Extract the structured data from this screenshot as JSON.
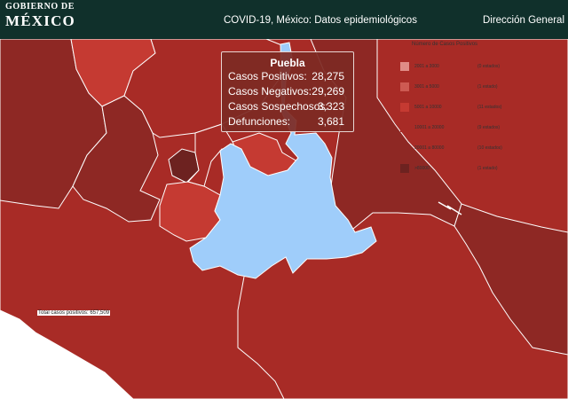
{
  "header": {
    "logo_line1": "GOBIERNO DE",
    "logo_line2": "MÉXICO",
    "title": "COVID-19, México: Datos epidemiológicos",
    "direction": "Dirección General"
  },
  "tooltip": {
    "state": "Puebla",
    "rows": [
      {
        "label": "Casos Positivos:",
        "value": "28,275"
      },
      {
        "label": "Casos Negativos:",
        "value": "29,269"
      },
      {
        "label": "Casos Sospechosos:",
        "value": "3,323"
      },
      {
        "label": "Defunciones:",
        "value": "3,681"
      }
    ]
  },
  "legend": {
    "title": "Número de Casos Positivos",
    "items": [
      {
        "range": "2001 a 3000",
        "count": "(0 estados)",
        "color": "#e08c86"
      },
      {
        "range": "3001 a 5000",
        "count": "(1 estado)",
        "color": "#cd5a52"
      },
      {
        "range": "5001 a 10000",
        "count": "(11 estados)",
        "color": "#c53a32"
      },
      {
        "range": "10001 a 20000",
        "count": "(9 estados)",
        "color": "#a82b26"
      },
      {
        "range": "20001 a 80000",
        "count": "(10 estados)",
        "color": "#8e2824"
      },
      {
        "range": ">80000",
        "count": "(1 estado)",
        "color": "#6d2220"
      }
    ]
  },
  "total": "Total casos positivos: 657,509",
  "colors": {
    "header_bg": "#10302b",
    "selected_state": "#9fcdfa",
    "state_border": "#ffffff"
  }
}
